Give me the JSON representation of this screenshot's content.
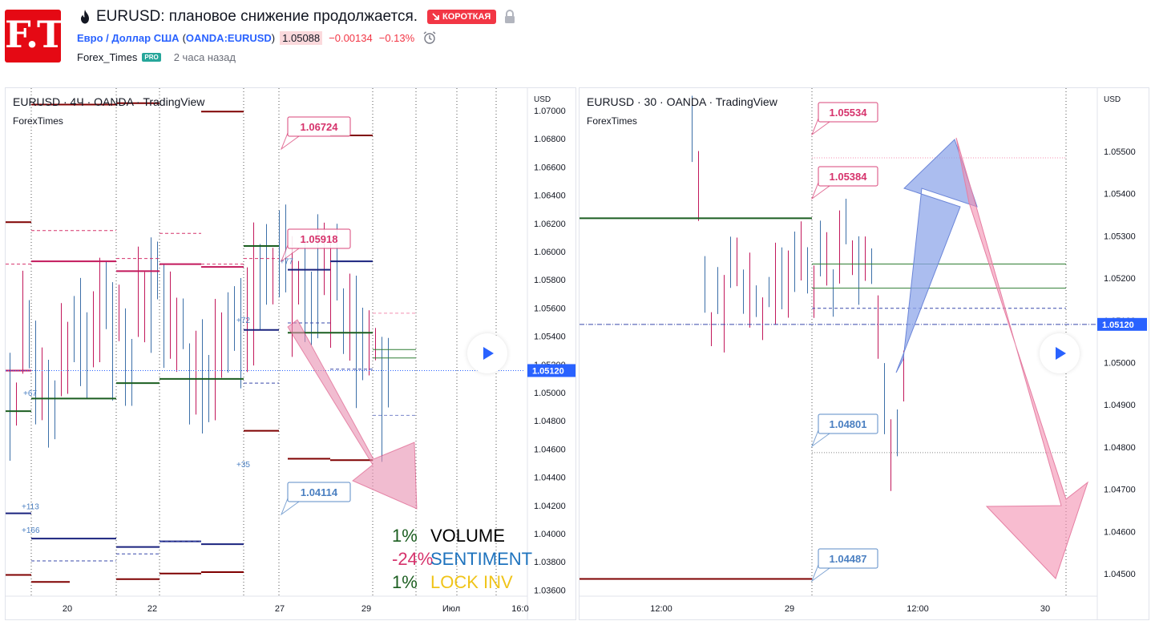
{
  "header": {
    "logo_text": "F.T.",
    "title": "EURUSD: плановое снижение продолжается.",
    "direction_badge": "КОРОТКАЯ",
    "symbol_name": "Евро / Доллар США",
    "ticker": "OANDA:EURUSD",
    "price": "1.05088",
    "change": "−0.00134",
    "change_pct": "−0.13%",
    "author": "Forex_Times",
    "author_badge": "PRO",
    "time_ago": "2 часа назад"
  },
  "colors": {
    "accent": "#2962ff",
    "short": "#f23645",
    "up": "#26a69a",
    "resistance_red": "#d6336c",
    "support_blue": "#4a7fc1",
    "arrow_pink": "#f48fb1",
    "arrow_blue": "#8fa7ea"
  },
  "left_chart": {
    "title": "EURUSD · 4Ч · OANDA · TradingView",
    "subtitle": "ForexTimes",
    "currency": "USD",
    "y_ticks": [
      "1.07000",
      "1.06800",
      "1.06600",
      "1.06400",
      "1.06200",
      "1.06000",
      "1.05800",
      "1.05600",
      "1.05400",
      "1.05200",
      "1.05000",
      "1.04800",
      "1.04600",
      "1.04400",
      "1.04200",
      "1.04000",
      "1.03800",
      "1.03600"
    ],
    "x_ticks": [
      "20",
      "22",
      "27",
      "29",
      "Июл",
      "16:0"
    ],
    "last_price": "1.05120",
    "callouts": {
      "c1": "1.06724",
      "c2": "1.05918",
      "c3": "1.04114"
    },
    "volume_labels": {
      "v1": "+77",
      "v2": "+72",
      "v3": "+67",
      "v4": "+35",
      "v5": "+113",
      "v6": "+166"
    },
    "stats": [
      {
        "pct": "1%",
        "label": "VOLUME",
        "pct_color": "#1b5e20",
        "label_color": "#000000"
      },
      {
        "pct": "-24%",
        "label": "SENTIMENT",
        "pct_color": "#d6336c",
        "label_color": "#1e73be"
      },
      {
        "pct": "1%",
        "label": "LOCK INV",
        "pct_color": "#1b5e20",
        "label_color": "#f0c419"
      }
    ]
  },
  "right_chart": {
    "title": "EURUSD · 30 · OANDA · TradingView",
    "subtitle": "ForexTimes",
    "currency": "USD",
    "y_ticks": [
      "1.05500",
      "1.05400",
      "1.05300",
      "1.05200",
      "1.05100",
      "1.05000",
      "1.04900",
      "1.04800",
      "1.04700",
      "1.04600",
      "1.04500"
    ],
    "x_ticks": [
      "12:00",
      "29",
      "12:00",
      "30"
    ],
    "last_price": "1.05120",
    "callouts": {
      "c1": "1.05534",
      "c2": "1.05384",
      "c3": "1.04801",
      "c4": "1.04487"
    }
  }
}
